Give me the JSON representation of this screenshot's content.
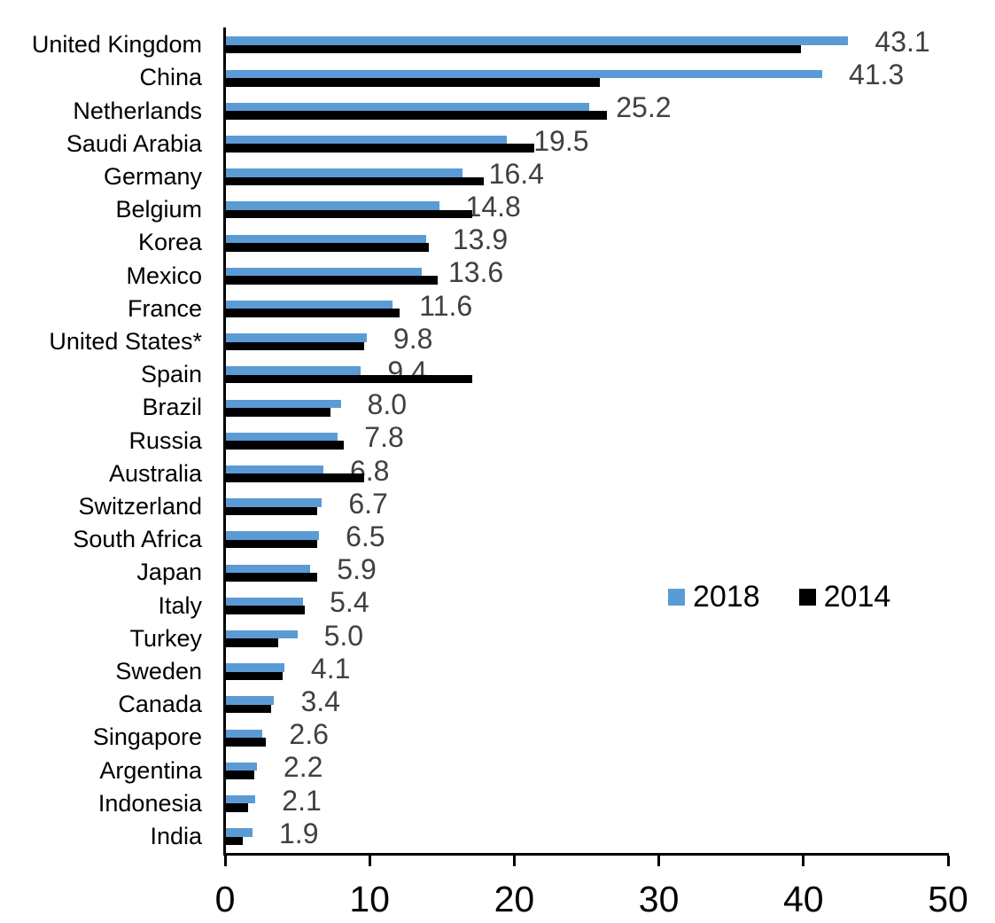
{
  "chart_data": {
    "type": "bar",
    "orientation": "horizontal",
    "title": "",
    "xlabel": "",
    "ylabel": "",
    "xlim": [
      0,
      50
    ],
    "xticks": [
      0,
      10,
      20,
      30,
      40,
      50
    ],
    "grid": false,
    "legend_position": "middle-right",
    "categories": [
      "United Kingdom",
      "China",
      "Netherlands",
      "Saudi Arabia",
      "Germany",
      "Belgium",
      "Korea",
      "Mexico",
      "France",
      "United States*",
      "Spain",
      "Brazil",
      "Russia",
      "Australia",
      "Switzerland",
      "South Africa",
      "Japan",
      "Italy",
      "Turkey",
      "Sweden",
      "Canada",
      "Singapore",
      "Argentina",
      "Indonesia",
      "India"
    ],
    "series": [
      {
        "name": "2018",
        "color": "#5B9BD5",
        "values": [
          43.1,
          41.3,
          25.2,
          19.5,
          16.4,
          14.8,
          13.9,
          13.6,
          11.6,
          9.8,
          9.4,
          8.0,
          7.8,
          6.8,
          6.7,
          6.5,
          5.9,
          5.4,
          5.0,
          4.1,
          3.4,
          2.6,
          2.2,
          2.1,
          1.9
        ]
      },
      {
        "name": "2014",
        "color": "#000000",
        "values": [
          39.8,
          25.9,
          26.4,
          21.4,
          17.9,
          17.1,
          14.1,
          14.7,
          12.1,
          9.6,
          17.1,
          7.3,
          8.2,
          9.6,
          6.4,
          6.4,
          6.4,
          5.5,
          3.7,
          4.0,
          3.2,
          2.8,
          2.0,
          1.6,
          1.2
        ]
      }
    ],
    "value_labels": [
      "43.1",
      "41.3",
      "25.2",
      "19.5",
      "16.4",
      "14.8",
      "13.9",
      "13.6",
      "11.6",
      "9.8",
      "9.4",
      "8.0",
      "7.8",
      "6.8",
      "6.7",
      "6.5",
      "5.9",
      "5.4",
      "5.0",
      "4.1",
      "3.4",
      "2.6",
      "2.2",
      "2.1",
      "1.9"
    ],
    "value_labels_series": "2018",
    "tick_labels": [
      "0",
      "10",
      "20",
      "30",
      "40",
      "50"
    ]
  },
  "legend": {
    "items": [
      {
        "label": "2018",
        "color": "#5B9BD5"
      },
      {
        "label": "2014",
        "color": "#000000"
      }
    ]
  }
}
